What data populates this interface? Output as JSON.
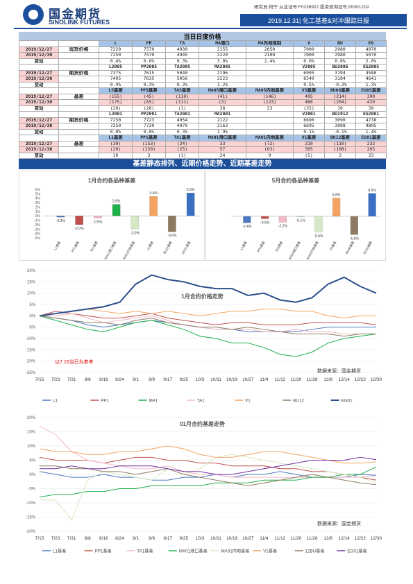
{
  "header": {
    "brand_cn": "国金期货",
    "brand_en": "SINOLINK FUTURES",
    "analyst": "研究员:何宁  从业证号:F0238922  投资咨询证号:Z0001219",
    "report_title": "2019.12.31| 化工基差&对冲跟踪日报"
  },
  "table": {
    "title": "当日日度价格",
    "rows": [
      {
        "cells": [
          "",
          "",
          "L",
          "PP",
          "TA",
          "MA港口",
          "MA内地煤制",
          "V",
          "BU",
          "EG"
        ],
        "cls": [
          "",
          "",
          "blue-hd",
          "blue-hd",
          "blue-hd",
          "blue-hd",
          "blue-hd",
          "blue-hd",
          "blue-hd",
          "blue-hd"
        ],
        "span": [
          1,
          1,
          1,
          1,
          1,
          1,
          1,
          1,
          1,
          1
        ]
      },
      {
        "cells": [
          "2019/12/27",
          "现货价格",
          "7220",
          "7570",
          "4930",
          "2155",
          "2050",
          "7000",
          "2980",
          "4970"
        ],
        "group": true
      },
      {
        "cells": [
          "2019/12/30",
          "",
          "7250",
          "7570",
          "4945",
          "2220",
          "2100",
          "7000",
          "2980",
          "5070"
        ]
      },
      {
        "cells": [
          "变动",
          "",
          "0.4%",
          "0.0%",
          "0.3%",
          "3.0%",
          "2.4%",
          "0.0%",
          "0.0%",
          "2.0%"
        ]
      },
      {
        "cells": [
          "",
          "",
          "L2005",
          "PP2005",
          "TA2005",
          "MA2005",
          "",
          "V2005",
          "BU2006",
          "EG2005"
        ]
      },
      {
        "cells": [
          "2019/12/27",
          "期货价格",
          "7375",
          "7615",
          "5040",
          "2196",
          "",
          "6905",
          "3194",
          "4580"
        ]
      },
      {
        "cells": [
          "2019/12/30",
          "",
          "7405",
          "7635",
          "5056",
          "2223",
          "",
          "6540",
          "3184",
          "4641"
        ]
      },
      {
        "cells": [
          "变动",
          "",
          "0.4%",
          "0.3%",
          "0.3%",
          "1.2%",
          "",
          "0.5%",
          "-0.3%",
          "1.3%"
        ]
      },
      {
        "cells": [
          "",
          "",
          "L5基差",
          "PP5基差",
          "TA5基差",
          "MA05港口基差",
          "MA05内地基差",
          "V5基差",
          "BU06基差",
          "EG05基差"
        ]
      },
      {
        "cells": [
          "2019/12/27",
          "基差",
          "(155)",
          "(45)",
          "(110)",
          "(41)",
          "(146)",
          "495",
          "(214)",
          "390"
        ]
      },
      {
        "cells": [
          "2019/12/30",
          "",
          "(175)",
          "(65)",
          "(111)",
          "(3)",
          "(123)",
          "460",
          "(204)",
          "429"
        ]
      },
      {
        "cells": [
          "变动",
          "",
          "(20)",
          "(20)",
          "(1)",
          "38",
          "23",
          "(35)",
          "10",
          "39"
        ]
      },
      {
        "cells": [
          "",
          "",
          "L2001",
          "PP2001",
          "TA2001",
          "MA2001",
          "",
          "V2001",
          "BU1912",
          "EG2001"
        ]
      },
      {
        "cells": [
          "2019/12/27",
          "期货价格",
          "7250",
          "7723",
          "4954",
          "2122",
          "",
          "6690",
          "3090",
          "4738"
        ]
      },
      {
        "cells": [
          "2019/12/30",
          "",
          "7250",
          "7720",
          "4970",
          "2163",
          "",
          "6695",
          "3088",
          "4805"
        ]
      },
      {
        "cells": [
          "变动",
          "",
          "0.0%",
          "0.0%",
          "0.3%",
          "1.9%",
          "",
          "0.1%",
          "-0.1%",
          "1.4%"
        ]
      },
      {
        "cells": [
          "",
          "",
          "L1基差",
          "PP1基差",
          "TA1基差",
          "MA01港口基差",
          "MA01内地基差",
          "V1基差",
          "BU12基差",
          "EG01基差"
        ]
      },
      {
        "cells": [
          "2019/12/27",
          "基差",
          "(30)",
          "(153)",
          "(24)",
          "33",
          "(72)",
          "310",
          "(110)",
          "232"
        ]
      },
      {
        "cells": [
          "2019/12/30",
          "",
          "(20)",
          "(150)",
          "(25)",
          "57",
          "(63)",
          "305",
          "(108)",
          "265"
        ]
      },
      {
        "cells": [
          "变动",
          "",
          "10",
          "3",
          "(1)",
          "24",
          "9",
          "(5)",
          "2",
          "33"
        ]
      }
    ]
  },
  "section2_title": "基差静态排列、近期价格走势、近期基差走势",
  "chart_data": [
    {
      "type": "bar",
      "title": "1月合约各品种基差",
      "categories": [
        "L1基差",
        "PP1基差",
        "TA1基差",
        "MA01港口基差",
        "MA01内地基差",
        "V1基差",
        "BU12基差",
        "EG01基差"
      ],
      "values": [
        -0.3,
        -2.0,
        -0.5,
        2.6,
        -3.0,
        4.4,
        -3.6,
        5.2
      ],
      "labels": [
        "-0.3%",
        "-2.0%",
        "-0.5%",
        "2.6%",
        "-3.0%",
        "4.4%",
        "-3.6%",
        "5.2%"
      ],
      "ylim": [
        -5,
        6
      ],
      "yticks": [
        "6%",
        "5%",
        "4%",
        "3%",
        "2%",
        "1%",
        "0%",
        "-1%",
        "-2%",
        "-3%",
        "-4%",
        "-5%"
      ],
      "colors": [
        "#4a78c2",
        "#c0504d",
        "#f2b8c6",
        "#1fb04a",
        "#d7e8c6",
        "#f4a460",
        "#8c7b60",
        "#3a6fc4"
      ]
    },
    {
      "type": "bar",
      "title": "5月合约各品种基差",
      "categories": [
        "L5基差",
        "PP5基差",
        "TA5基差",
        "MA05港口基差",
        "MA05内地基差",
        "V5基差",
        "BU06基差",
        "EG05基差"
      ],
      "values": [
        -2.4,
        -0.9,
        -2.2,
        -0.1,
        -5.9,
        6.8,
        -6.8,
        8.5
      ],
      "labels": [
        "-2.4%",
        "-0.9%",
        "-2.2%",
        "-0.1%",
        "-5.9%",
        "6.8%",
        "-6.8%",
        "8.5%"
      ],
      "ylim": [
        -8,
        10
      ],
      "colors": [
        "#4a78c2",
        "#c0504d",
        "#f2b8c6",
        "#1fb04a",
        "#d7e8c6",
        "#f4a460",
        "#8c7b60",
        "#3a6fc4"
      ]
    },
    {
      "type": "line",
      "title": "1月合约价格走势",
      "x": [
        "7/15",
        "7/23",
        "7/31",
        "8/8",
        "8/16",
        "8/24",
        "9/1",
        "9/9",
        "9/17",
        "9/25",
        "10/3",
        "10/11",
        "10/19",
        "10/27",
        "11/4",
        "11/12",
        "11/20",
        "11/28",
        "12/6",
        "12/14",
        "12/22",
        "12/30"
      ],
      "yticks": [
        "20%",
        "15%",
        "10%",
        "5%",
        "0%",
        "-5%",
        "-10%",
        "-15%",
        "-20%",
        "-25%"
      ],
      "ylim": [
        -25,
        20
      ],
      "series": [
        {
          "name": "L1",
          "color": "#4a78c2",
          "values": [
            0,
            -1,
            -2,
            -4,
            -5,
            -4,
            -3,
            -2,
            -3,
            -4,
            -5,
            -6,
            -6,
            -7,
            -7,
            -7,
            -7,
            -6,
            -5,
            -5,
            -5,
            -5
          ]
        },
        {
          "name": "PP1",
          "color": "#c0504d",
          "values": [
            0,
            2,
            1,
            0,
            -1,
            -1,
            0,
            1,
            -1,
            -2,
            -3,
            -4,
            -3,
            -3,
            -4,
            -4,
            -4,
            -3,
            -3,
            -3,
            -3,
            -4
          ]
        },
        {
          "name": "MA1",
          "color": "#1fb04a",
          "values": [
            0,
            -2,
            -4,
            -6,
            -7,
            -5,
            -3,
            -2,
            -4,
            -6,
            -9,
            -10,
            -12,
            -12,
            -14,
            -17,
            -18,
            -16,
            -12,
            -10,
            -9,
            -8
          ]
        },
        {
          "name": "TA1",
          "color": "#f2b8c6",
          "values": [
            0,
            0,
            1,
            -1,
            -3,
            -2,
            -1,
            0,
            -2,
            -4,
            -5,
            -6,
            -6,
            -6,
            -7,
            -7,
            -6,
            -7,
            -7,
            -8,
            -8,
            -8
          ]
        },
        {
          "name": "V1",
          "color": "#f4a460",
          "values": [
            0,
            1,
            2,
            3,
            2,
            1,
            2,
            1,
            2,
            1,
            0,
            1,
            2,
            2,
            3,
            3,
            2,
            2,
            0,
            -1,
            0,
            0
          ]
        },
        {
          "name": "BU12",
          "color": "#8c7b60",
          "values": [
            0,
            -1,
            -2,
            -3,
            -3,
            -4,
            -2,
            -1,
            -3,
            -4,
            -5,
            -5,
            -6,
            -5,
            -6,
            -7,
            -8,
            -8,
            -8,
            -9,
            -8,
            -8
          ]
        },
        {
          "name": "EG01",
          "color": "#2c4f8a",
          "values": [
            0,
            1,
            2,
            3,
            4,
            6,
            14,
            18,
            16,
            15,
            13,
            12,
            12,
            9,
            10,
            7,
            6,
            8,
            14,
            17,
            13,
            10
          ]
        }
      ],
      "note": "以7.15当日为参考",
      "source": "数据来源：国金期货"
    },
    {
      "type": "line",
      "title": "01月合约基差走势",
      "x": [
        "7/15",
        "7/23",
        "7/31",
        "8/8",
        "8/16",
        "8/24",
        "9/1",
        "9/9",
        "9/17",
        "9/25",
        "10/3",
        "10/11",
        "10/19",
        "10/27",
        "11/4",
        "11/12",
        "11/20",
        "11/28",
        "12/6",
        "12/14",
        "12/22",
        "12/30"
      ],
      "yticks": [
        "20%",
        "15%",
        "10%",
        "5%",
        "0%",
        "-5%",
        "-10%",
        "-15%",
        "-20%"
      ],
      "ylim": [
        -20,
        20
      ],
      "series": [
        {
          "name": "L1基差",
          "color": "#4a78c2",
          "values": [
            1,
            0,
            -1,
            -1,
            0,
            -1,
            -1,
            -2,
            -2,
            -1,
            -1,
            0,
            -1,
            0,
            0,
            1,
            0,
            -1,
            -1,
            -1,
            0,
            -0.3
          ]
        },
        {
          "name": "PP1基差",
          "color": "#c0504d",
          "values": [
            6,
            5,
            5,
            5,
            4,
            5,
            6,
            6,
            5,
            5,
            4,
            4,
            3,
            3,
            3,
            2,
            2,
            1,
            1,
            0,
            -1,
            -2
          ]
        },
        {
          "name": "TA1基差",
          "color": "#f2b8c6",
          "values": [
            17,
            14,
            8,
            5,
            4,
            3,
            2,
            2,
            3,
            1,
            0,
            0,
            -1,
            -1,
            -1,
            -1,
            -1,
            -1,
            -1,
            -1,
            -1,
            -0.5
          ]
        },
        {
          "name": "MA01港口基差",
          "color": "#1fb04a",
          "values": [
            -8,
            -7,
            -7,
            -6,
            -6,
            -5,
            -5,
            -4,
            -4,
            -4,
            -4,
            -3,
            -3,
            -3,
            -2,
            -2,
            -2,
            -1,
            -1,
            0,
            0,
            2.6
          ]
        },
        {
          "name": "MA01内地基差",
          "color": "#d7e8c6",
          "values": [
            -9,
            -9,
            -16,
            -2,
            1,
            0,
            -1,
            -2,
            2,
            0,
            2,
            6,
            7,
            6,
            5,
            4,
            3,
            2,
            1,
            0,
            -1,
            -3
          ]
        },
        {
          "name": "V1基差",
          "color": "#f4a460",
          "values": [
            9,
            8,
            8,
            7,
            7,
            8,
            8,
            9,
            10,
            9,
            7,
            6,
            6,
            7,
            8,
            8,
            7,
            6,
            5,
            4,
            4,
            4.4
          ]
        },
        {
          "name": "12BU基差",
          "color": "#8c7b60",
          "values": [
            3,
            3,
            2,
            2,
            1,
            1,
            0,
            1,
            2,
            0,
            -1,
            -2,
            -3,
            -4,
            -3,
            -2,
            -1,
            0,
            -1,
            -2,
            -3,
            -3.6
          ]
        },
        {
          "name": "EG01基差",
          "color": "#7030a0",
          "values": [
            2,
            2,
            3,
            2,
            2,
            3,
            3,
            3,
            2,
            1,
            1,
            0,
            0,
            1,
            2,
            3,
            4,
            5,
            5,
            5,
            6,
            5.2
          ]
        }
      ],
      "source": "数据来源：国金期货"
    }
  ]
}
